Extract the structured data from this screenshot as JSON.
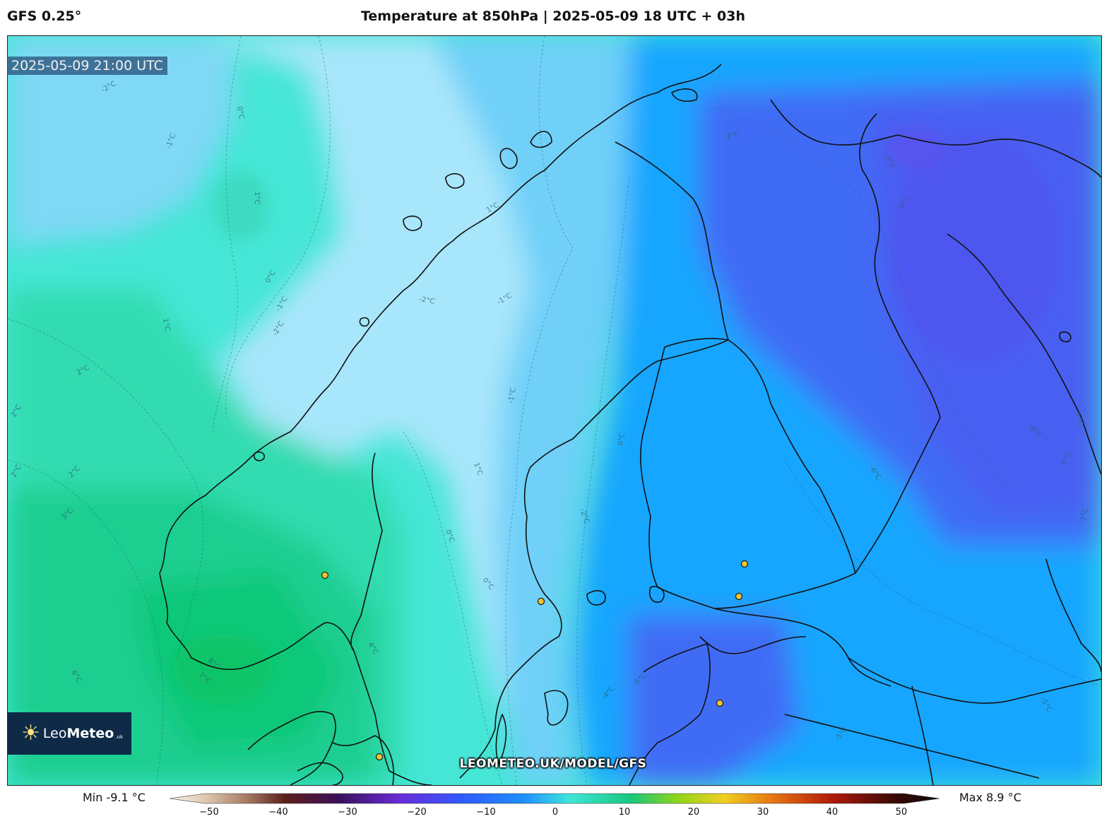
{
  "header": {
    "model": "GFS 0.25°",
    "title": "Temperature at 850hPa | 2025-05-09 18 UTC + 03h"
  },
  "map": {
    "valid_time": "2025-05-09 21:00 UTC",
    "watermark": "LEOMETEO.UK/MODEL/GFS",
    "contour_labels": [
      "-2°C",
      "0°C",
      "-1°C",
      "1°C",
      "0°C",
      "-1°C",
      "-2°C",
      "1°C",
      "2°C",
      "2°C",
      "2°C",
      "2°C",
      "3°C",
      "0°C",
      "1°C",
      "-1°C",
      "-2°C",
      "-1°C",
      "-2°C",
      "1°C",
      "0°C",
      "0°C",
      "4°C",
      "-7°C",
      "-7°C",
      "-8°C",
      "-6°C",
      "-6°C",
      "-5°C",
      "-6°C",
      "-7°C",
      "-4°C",
      "-5°C",
      "-5°C",
      "8°C",
      "7°C",
      "6°C",
      "-5°C"
    ],
    "cities": [
      "city-1",
      "city-2",
      "city-3",
      "city-4",
      "city-5",
      "city-6"
    ]
  },
  "logo": {
    "name_light": "Leo",
    "name_bold": "Meteo",
    "suffix": ".uk"
  },
  "colorbar": {
    "min_label": "Min -9.1 °C",
    "max_label": "Max 8.9 °C",
    "ticks": [
      "−50",
      "−40",
      "−30",
      "−20",
      "−10",
      "0",
      "10",
      "20",
      "30",
      "40",
      "50"
    ],
    "range": [
      -50,
      50
    ],
    "colors": [
      "#fdf6e6",
      "#c7a98c",
      "#5a1f1a",
      "#3c0f5c",
      "#6a2bd9",
      "#2e5bff",
      "#1e90ff",
      "#3fe6d8",
      "#19c77a",
      "#8fd51a",
      "#f1d021",
      "#e87a13",
      "#b21a0c",
      "#3a0a05",
      "#0a0a0a"
    ]
  },
  "accent_colors": {
    "cold": "#3f6cf5",
    "cool": "#18a6ff",
    "mild": "#43e6d6",
    "warm": "#10c878"
  }
}
